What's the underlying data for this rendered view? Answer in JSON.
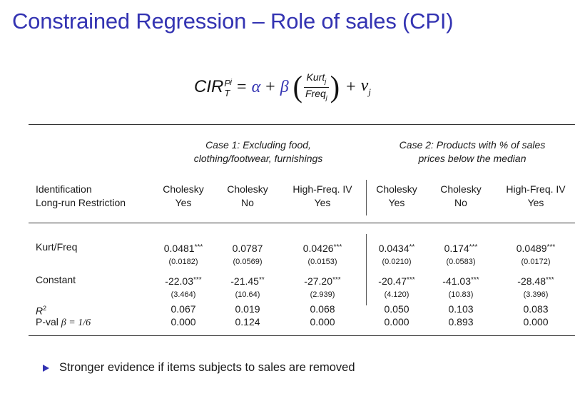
{
  "title": "Constrained Regression – Role of sales (CPI)",
  "equation": {
    "lhs": "CIR",
    "lhs_sup": "P",
    "lhs_sup_sub": "j",
    "lhs_sub": "T",
    "equals": "=",
    "alpha": "α",
    "plus": "+",
    "beta": "β",
    "frac_num": "Kurt",
    "frac_num_sub": "j",
    "frac_den": "Freq",
    "frac_den_sub": "j",
    "nu": "ν",
    "nu_sub": "j"
  },
  "table": {
    "case1_title": [
      "Case 1: Excluding food,",
      "clothing/footwear, furnishings"
    ],
    "case2_title": [
      "Case 2: Products with % of sales",
      "prices below the median"
    ],
    "row_header_1": "Identification",
    "row_header_2": "Long-run Restriction",
    "columns": [
      {
        "ident": "Cholesky",
        "restr": "Yes"
      },
      {
        "ident": "Cholesky",
        "restr": "No"
      },
      {
        "ident": "High-Freq. IV",
        "restr": "Yes"
      },
      {
        "ident": "Cholesky",
        "restr": "Yes"
      },
      {
        "ident": "Cholesky",
        "restr": "No"
      },
      {
        "ident": "High-Freq. IV",
        "restr": "Yes"
      }
    ],
    "kurt_label": "Kurt/Freq",
    "kurt_values": [
      {
        "v": "0.0481",
        "s": "***"
      },
      {
        "v": "0.0787",
        "s": ""
      },
      {
        "v": "0.0426",
        "s": "***"
      },
      {
        "v": "0.0434",
        "s": "**"
      },
      {
        "v": "0.174",
        "s": "***"
      },
      {
        "v": "0.0489",
        "s": "***"
      }
    ],
    "kurt_se": [
      "(0.0182)",
      "(0.0569)",
      "(0.0153)",
      "(0.0210)",
      "(0.0583)",
      "(0.0172)"
    ],
    "const_label": "Constant",
    "const_values": [
      {
        "v": "-22.03",
        "s": "***"
      },
      {
        "v": "-21.45",
        "s": "**"
      },
      {
        "v": "-27.20",
        "s": "***"
      },
      {
        "v": "-20.47",
        "s": "***"
      },
      {
        "v": "-41.03",
        "s": "***"
      },
      {
        "v": "-28.48",
        "s": "***"
      }
    ],
    "const_se": [
      "(3.464)",
      "(10.64)",
      "(2.939)",
      "(4.120)",
      "(10.83)",
      "(3.396)"
    ],
    "r2_label": "R",
    "r2_sup": "2",
    "r2_values": [
      "0.067",
      "0.019",
      "0.068",
      "0.050",
      "0.103",
      "0.083"
    ],
    "pval_label": "P-val",
    "pval_cond": "β = 1/6",
    "pval_values": [
      "0.000",
      "0.124",
      "0.000",
      "0.000",
      "0.893",
      "0.000"
    ]
  },
  "bullet": "Stronger evidence if items subjects to sales are removed",
  "colors": {
    "accent": "#3333b2",
    "text": "#1a1a1a"
  }
}
